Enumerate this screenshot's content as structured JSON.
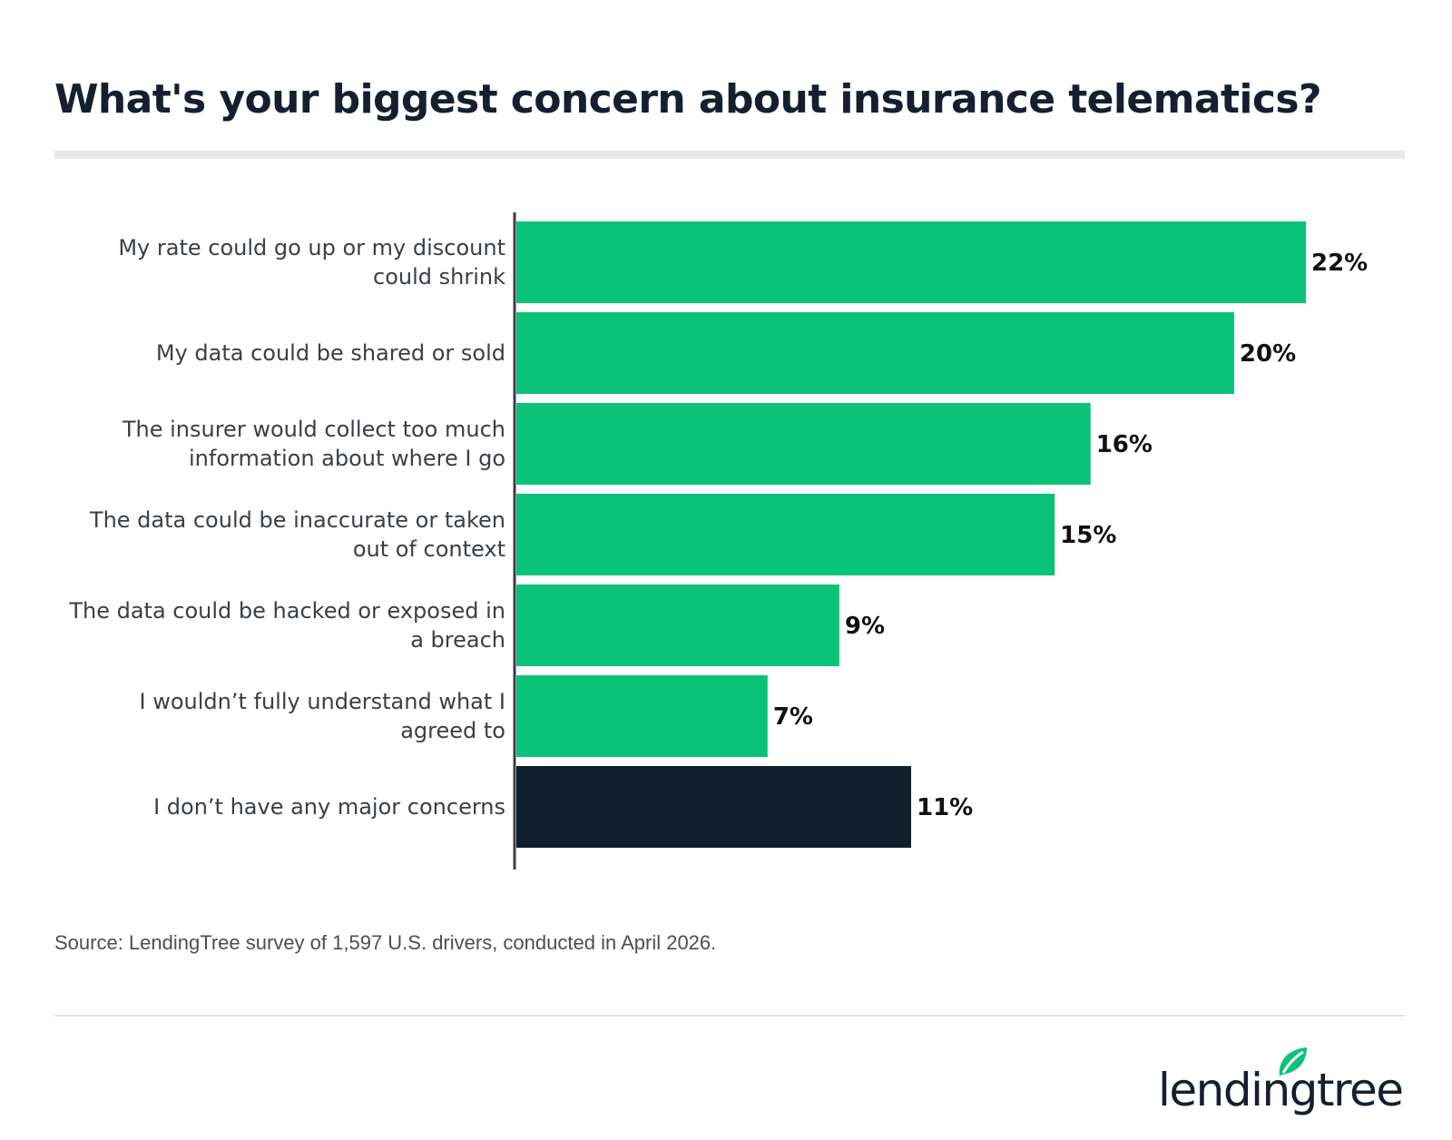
{
  "chart_data": {
    "type": "bar",
    "orientation": "horizontal",
    "title": "What's your biggest concern about insurance telematics?",
    "categories": [
      "My rate could go up or my discount could shrink",
      "My data could be shared or sold",
      "The insurer would collect too much information about where I go",
      "The data could be inaccurate or taken out of context",
      "The data could be hacked or exposed in a breach",
      "I wouldn’t fully understand what I agreed to",
      "I don’t have any major concerns"
    ],
    "label_lines": [
      [
        "My rate could go up or my discount",
        "could shrink"
      ],
      [
        "My data could be shared or sold"
      ],
      [
        "The insurer would collect too much",
        "information about where I go"
      ],
      [
        "The data could be inaccurate or taken",
        "out of context"
      ],
      [
        "The data could be hacked or exposed in",
        "a breach"
      ],
      [
        "I wouldn’t fully understand what I",
        "agreed to"
      ],
      [
        "I don’t have any major concerns"
      ]
    ],
    "values": [
      22,
      20,
      16,
      15,
      9,
      7,
      11
    ],
    "value_labels": [
      "22%",
      "20%",
      "16%",
      "15%",
      "9%",
      "7%",
      "11%"
    ],
    "unit": "%",
    "bar_colors": [
      "#0bc279",
      "#0bc279",
      "#0bc279",
      "#0bc279",
      "#0bc279",
      "#0bc279",
      "#121f2e"
    ],
    "xlim": [
      0,
      22
    ],
    "grid": false,
    "legend": "none"
  },
  "source": "Source: LendingTree survey of 1,597 U.S. drivers, conducted in April 2026.",
  "logo": {
    "text": "lendingtree",
    "icon": "leaf-icon",
    "color": "#0bc279"
  },
  "colors": {
    "text": "#142030",
    "accent": "#0bc279",
    "dark": "#121f2e"
  }
}
